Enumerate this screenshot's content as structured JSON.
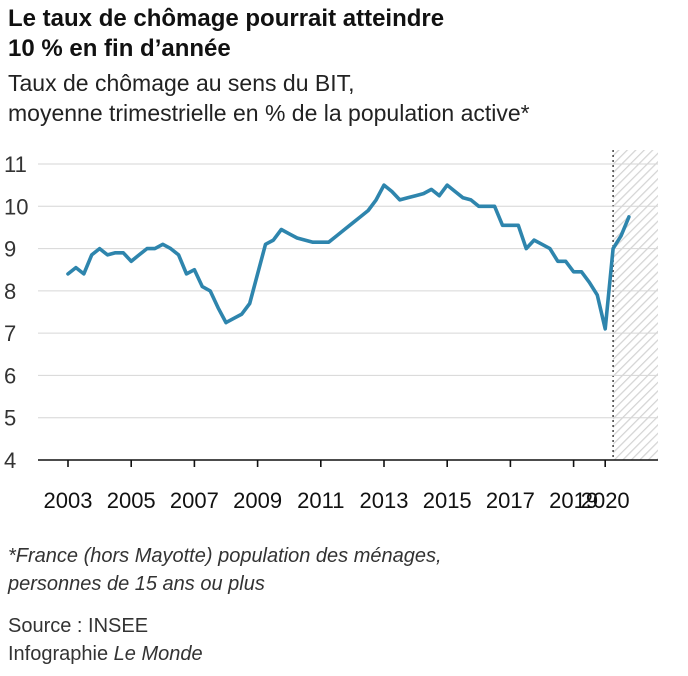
{
  "title_line1": "Le taux de chômage pourrait atteindre",
  "title_line2": "10 % en fin d’année",
  "subtitle_line1": "Taux de chômage au sens du BIT,",
  "subtitle_line2": "moyenne trimestrielle en % de la population active*",
  "footnote_line1": "*France (hors Mayotte) population des ménages,",
  "footnote_line2": "personnes de 15 ans ou plus",
  "source": "Source : INSEE",
  "credit_prefix": "Infographie ",
  "credit_brand": "Le Monde",
  "chart_data": {
    "type": "line",
    "title": "Le taux de chômage pourrait atteindre 10 % en fin d’année",
    "subtitle": "Taux de chômage au sens du BIT, moyenne trimestrielle en % de la population active*",
    "xlabel": "",
    "ylabel": "",
    "xlim": [
      2003.0,
      2021.0
    ],
    "ylim": [
      4,
      11
    ],
    "y_ticks": [
      "4",
      "5",
      "6",
      "7",
      "8",
      "9",
      "10",
      "11"
    ],
    "x_ticks": [
      "2003",
      "2005",
      "2007",
      "2009",
      "2011",
      "2013",
      "2015",
      "2017",
      "2019",
      "2020"
    ],
    "grid": "horizontal",
    "line_color": "#2e85ad",
    "forecast_start": 2020.25,
    "series": [
      {
        "x": [
          2003.0,
          2003.25,
          2003.5,
          2003.75,
          2004.0,
          2004.25,
          2004.5,
          2004.75,
          2005.0,
          2005.25,
          2005.5,
          2005.75,
          2006.0,
          2006.25,
          2006.5,
          2006.75,
          2007.0,
          2007.25,
          2007.5,
          2007.75,
          2008.0,
          2008.25,
          2008.5,
          2008.75,
          2009.0,
          2009.25,
          2009.5,
          2009.75,
          2010.0,
          2010.25,
          2010.5,
          2010.75,
          2011.0,
          2011.25,
          2011.5,
          2011.75,
          2012.0,
          2012.25,
          2012.5,
          2012.75,
          2013.0,
          2013.25,
          2013.5,
          2013.75,
          2014.0,
          2014.25,
          2014.5,
          2014.75,
          2015.0,
          2015.25,
          2015.5,
          2015.75,
          2016.0,
          2016.25,
          2016.5,
          2016.75,
          2017.0,
          2017.25,
          2017.5,
          2017.75,
          2018.0,
          2018.25,
          2018.5,
          2018.75,
          2019.0,
          2019.25,
          2019.5,
          2019.75,
          2020.0,
          2020.25,
          2020.5,
          2020.75
        ],
        "y": [
          8.4,
          8.55,
          8.4,
          8.85,
          9.0,
          8.85,
          8.9,
          8.9,
          8.7,
          8.85,
          9.0,
          9.0,
          9.1,
          9.0,
          8.85,
          8.4,
          8.5,
          8.1,
          8.0,
          7.6,
          7.25,
          7.35,
          7.45,
          7.7,
          8.4,
          9.1,
          9.2,
          9.45,
          9.35,
          9.25,
          9.2,
          9.15,
          9.15,
          9.15,
          9.3,
          9.45,
          9.6,
          9.75,
          9.9,
          10.15,
          10.5,
          10.35,
          10.15,
          10.2,
          10.25,
          10.3,
          10.4,
          10.25,
          10.5,
          10.35,
          10.2,
          10.15,
          10.0,
          10.0,
          10.0,
          9.55,
          9.55,
          9.55,
          9.0,
          9.2,
          9.1,
          9.0,
          8.7,
          8.7,
          8.45,
          8.45,
          8.2,
          7.9,
          7.1,
          9.0,
          9.3,
          9.75
        ]
      }
    ]
  }
}
